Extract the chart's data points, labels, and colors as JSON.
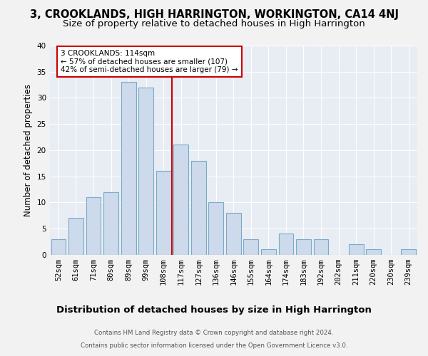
{
  "title": "3, CROOKLANDS, HIGH HARRINGTON, WORKINGTON, CA14 4NJ",
  "subtitle": "Size of property relative to detached houses in High Harrington",
  "xlabel": "Distribution of detached houses by size in High Harrington",
  "ylabel": "Number of detached properties",
  "footnote1": "Contains HM Land Registry data © Crown copyright and database right 2024.",
  "footnote2": "Contains public sector information licensed under the Open Government Licence v3.0.",
  "categories": [
    "52sqm",
    "61sqm",
    "71sqm",
    "80sqm",
    "89sqm",
    "99sqm",
    "108sqm",
    "117sqm",
    "127sqm",
    "136sqm",
    "146sqm",
    "155sqm",
    "164sqm",
    "174sqm",
    "183sqm",
    "192sqm",
    "202sqm",
    "211sqm",
    "220sqm",
    "230sqm",
    "239sqm"
  ],
  "values": [
    3,
    7,
    11,
    12,
    33,
    32,
    16,
    21,
    18,
    10,
    8,
    3,
    1,
    4,
    3,
    3,
    0,
    2,
    1,
    0,
    1
  ],
  "bar_color": "#ccdaeb",
  "bar_edge_color": "#7baac8",
  "vline_index": 6.5,
  "vline_color": "#cc0000",
  "annotation_text": "3 CROOKLANDS: 114sqm\n← 57% of detached houses are smaller (107)\n42% of semi-detached houses are larger (79) →",
  "ylim": [
    0,
    40
  ],
  "yticks": [
    0,
    5,
    10,
    15,
    20,
    25,
    30,
    35,
    40
  ],
  "fig_bg": "#f2f2f2",
  "plot_bg": "#e8edf4",
  "title_fontsize": 10.5,
  "subtitle_fontsize": 9.5,
  "xlabel_fontsize": 9.5,
  "ylabel_fontsize": 8.5,
  "tick_fontsize": 7.5,
  "annot_fontsize": 7.5
}
